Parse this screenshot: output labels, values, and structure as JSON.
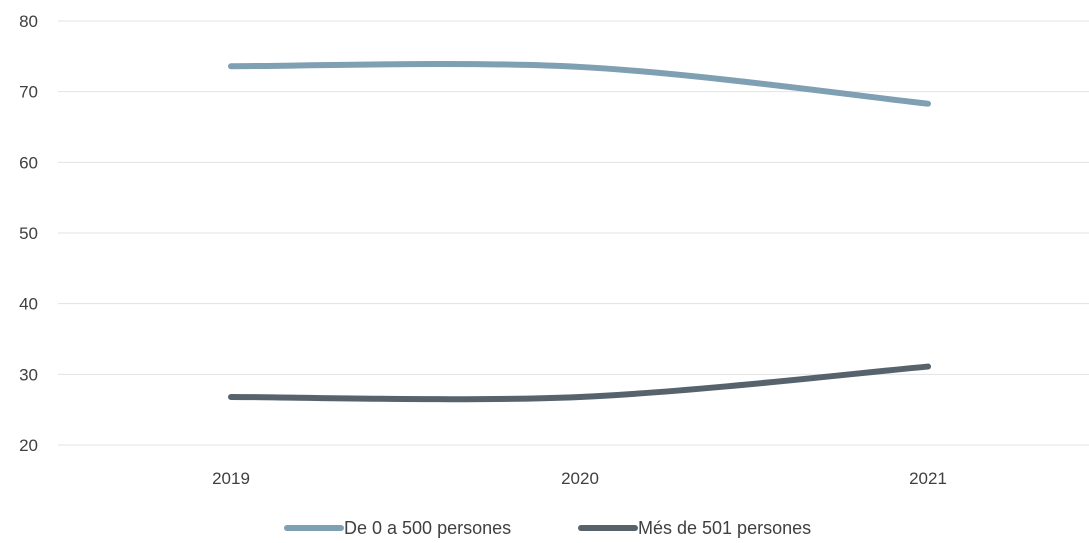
{
  "chart_data": {
    "type": "line",
    "categories": [
      "2019",
      "2020",
      "2021"
    ],
    "series": [
      {
        "name": "De 0 a 500 persones",
        "values": [
          73.6,
          73.5,
          68.3
        ],
        "color": "#7f9fb2"
      },
      {
        "name": "Més de 501 persones",
        "values": [
          26.8,
          26.8,
          31.1
        ],
        "color": "#56636d"
      }
    ],
    "ylim": [
      20,
      80
    ],
    "yticks": [
      20,
      30,
      40,
      50,
      60,
      70,
      80
    ],
    "grid": true,
    "smooth": true,
    "legend": "bottom-center"
  }
}
